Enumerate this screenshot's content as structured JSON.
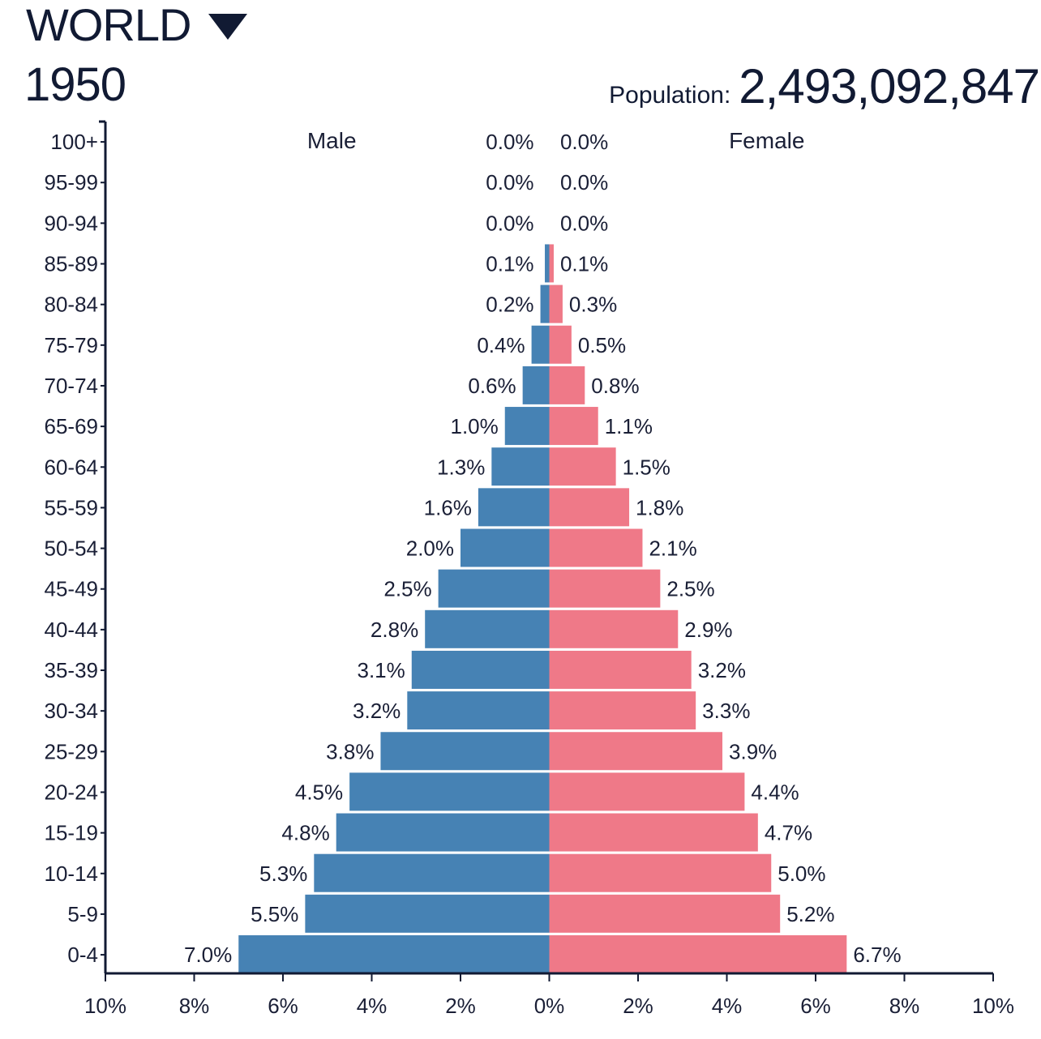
{
  "header": {
    "region": "WORLD",
    "year": "1950",
    "population_label": "Population:",
    "population_value": "2,493,092,847"
  },
  "colors": {
    "male": "#4682b4",
    "female": "#ef7988",
    "axis": "#111a33"
  },
  "icons": {
    "region_dropdown": "caret-down-icon"
  },
  "chart_data": {
    "type": "bar",
    "orientation": "horizontal",
    "layout": "population-pyramid",
    "categories": [
      "100+",
      "95-99",
      "90-94",
      "85-89",
      "80-84",
      "75-79",
      "70-74",
      "65-69",
      "60-64",
      "55-59",
      "50-54",
      "45-49",
      "40-44",
      "35-39",
      "30-34",
      "25-29",
      "20-24",
      "15-19",
      "10-14",
      "5-9",
      "0-4"
    ],
    "series": [
      {
        "name": "Male",
        "side": "left",
        "values": [
          0.0,
          0.0,
          0.0,
          0.1,
          0.2,
          0.4,
          0.6,
          1.0,
          1.3,
          1.6,
          2.0,
          2.5,
          2.8,
          3.1,
          3.2,
          3.8,
          4.5,
          4.8,
          5.3,
          5.5,
          7.0
        ],
        "labels": [
          "0.0%",
          "0.0%",
          "0.0%",
          "0.1%",
          "0.2%",
          "0.4%",
          "0.6%",
          "1.0%",
          "1.3%",
          "1.6%",
          "2.0%",
          "2.5%",
          "2.8%",
          "3.1%",
          "3.2%",
          "3.8%",
          "4.5%",
          "4.8%",
          "5.3%",
          "5.5%",
          "7.0%"
        ]
      },
      {
        "name": "Female",
        "side": "right",
        "values": [
          0.0,
          0.0,
          0.0,
          0.1,
          0.3,
          0.5,
          0.8,
          1.1,
          1.5,
          1.8,
          2.1,
          2.5,
          2.9,
          3.2,
          3.3,
          3.9,
          4.4,
          4.7,
          5.0,
          5.2,
          6.7
        ],
        "labels": [
          "0.0%",
          "0.0%",
          "0.0%",
          "0.1%",
          "0.3%",
          "0.5%",
          "0.8%",
          "1.1%",
          "1.5%",
          "1.8%",
          "2.1%",
          "2.5%",
          "2.9%",
          "3.2%",
          "3.3%",
          "3.9%",
          "4.4%",
          "4.7%",
          "5.0%",
          "5.2%",
          "6.7%"
        ]
      }
    ],
    "xlim": [
      -10,
      10
    ],
    "x_ticks": [
      -10,
      -8,
      -6,
      -4,
      -2,
      0,
      2,
      4,
      6,
      8,
      10
    ],
    "x_tick_labels": [
      "10%",
      "8%",
      "6%",
      "4%",
      "2%",
      "0%",
      "2%",
      "4%",
      "6%",
      "8%",
      "10%"
    ],
    "xlabel": "",
    "ylabel": "",
    "grid": false,
    "legend": "none"
  }
}
